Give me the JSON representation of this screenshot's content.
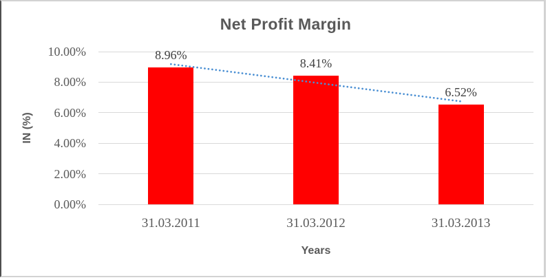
{
  "chart_data": {
    "type": "bar",
    "title": "Net Profit Margin",
    "xlabel": "Years",
    "ylabel": "IN (%)",
    "categories": [
      "31.03.2011",
      "31.03.2012",
      "31.03.2013"
    ],
    "series": [
      {
        "name": "Net Profit Margin",
        "values": [
          8.96,
          8.41,
          6.52
        ]
      }
    ],
    "value_labels": [
      "8.96%",
      "8.41%",
      "6.52%"
    ],
    "ylim": [
      0,
      10
    ],
    "yticks": [
      {
        "value": 0,
        "label": "0.00%"
      },
      {
        "value": 2,
        "label": "2.00%"
      },
      {
        "value": 4,
        "label": "4.00%"
      },
      {
        "value": 6,
        "label": "6.00%"
      },
      {
        "value": 8,
        "label": "8.00%"
      },
      {
        "value": 10,
        "label": "10.00%"
      }
    ],
    "grid": true,
    "legend": "none",
    "trendline": {
      "type": "linear",
      "style": "dotted",
      "start_value": 9.18,
      "end_value": 6.74
    },
    "colors": {
      "bar": "#ff0000",
      "trendline": "#4a8fd3",
      "gridline": "#d9d9d9",
      "axis_text": "#595959",
      "title_text": "#595959",
      "data_label_text": "#3f3f3f"
    }
  }
}
